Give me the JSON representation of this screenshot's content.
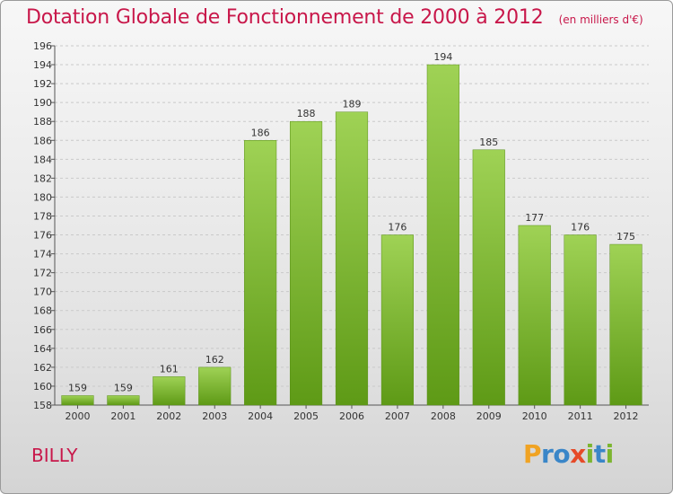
{
  "title": "Dotation Globale de Fonctionnement de 2000 à 2012",
  "subtitle": "(en milliers d'€)",
  "town": "BILLY",
  "logo": {
    "letters": [
      "P",
      "r",
      "o",
      "x",
      "i",
      "t",
      "i"
    ],
    "colors": [
      "#f0a323",
      "#3a86c8",
      "#3a86c8",
      "#e64a28",
      "#7cb530",
      "#3a86c8",
      "#7cb530"
    ]
  },
  "colors": {
    "title": "#c8174a",
    "bar_top": "#9fd255",
    "bar_bottom": "#5e9a16",
    "grid": "#c9c9c9"
  },
  "chart_data": {
    "type": "bar",
    "categories": [
      "2000",
      "2001",
      "2002",
      "2003",
      "2004",
      "2005",
      "2006",
      "2007",
      "2008",
      "2009",
      "2010",
      "2011",
      "2012"
    ],
    "values": [
      159,
      159,
      161,
      162,
      186,
      188,
      189,
      176,
      194,
      185,
      177,
      176,
      175
    ],
    "ylim": [
      158,
      196
    ],
    "yticks": [
      158,
      160,
      162,
      164,
      166,
      168,
      170,
      172,
      174,
      176,
      178,
      180,
      182,
      184,
      186,
      188,
      190,
      192,
      194,
      196
    ],
    "grid": true
  }
}
